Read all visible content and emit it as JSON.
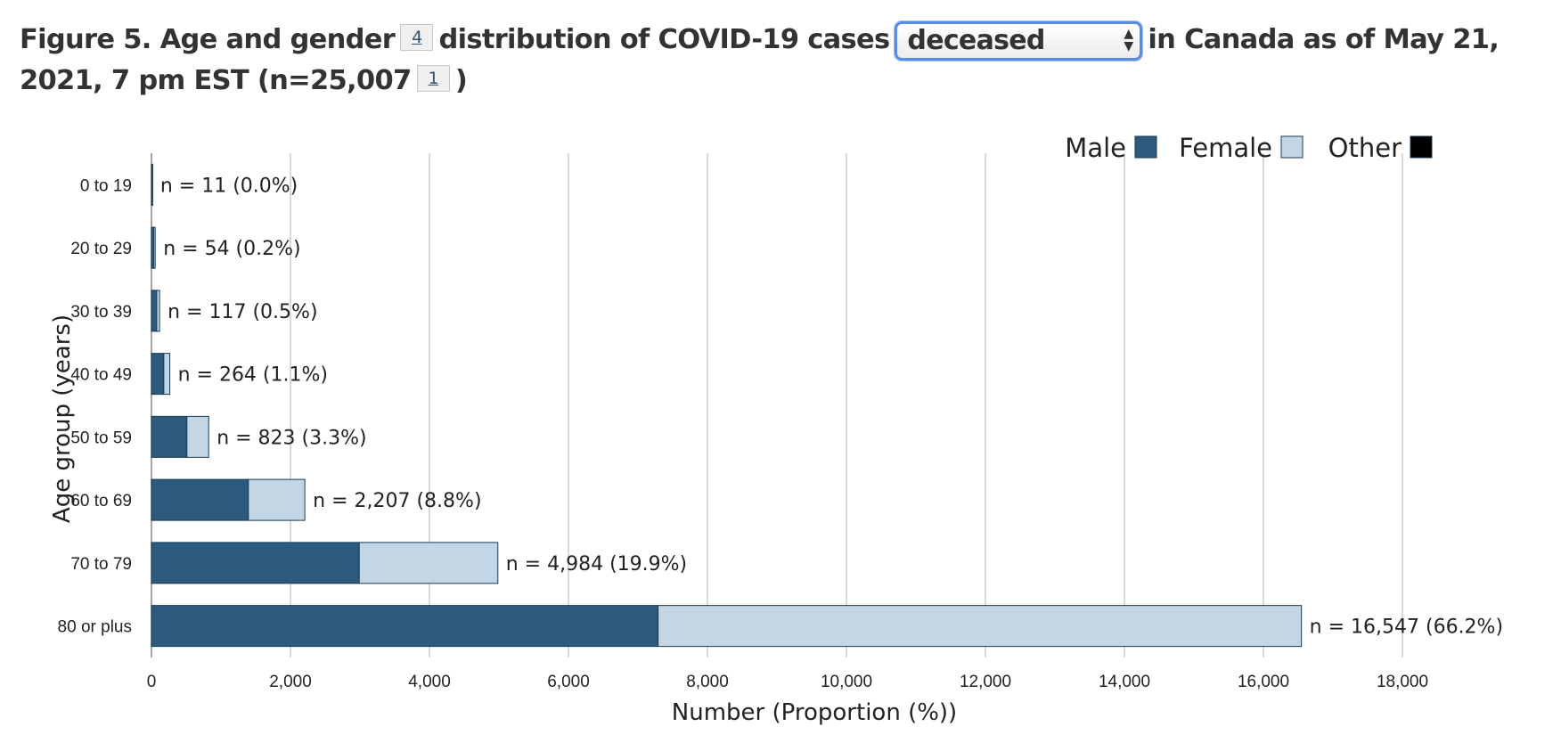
{
  "title": {
    "part1": "Figure 5. Age and gender",
    "footnote_a": "4",
    "part2": "distribution of COVID-19 cases",
    "select_value": "deceased",
    "part3": "in Canada as of May 21, 2021, 7 pm EST (n=25,007",
    "footnote_b": "1",
    "part4": ")"
  },
  "colors": {
    "male": "#2b5a7e",
    "female": "#c3d6e6",
    "other": "#000000",
    "grid": "#cccccc"
  },
  "chart_data": {
    "type": "bar",
    "orientation": "horizontal",
    "stacked": true,
    "categories": [
      "0 to 19",
      "20 to 29",
      "30 to 39",
      "40 to 49",
      "50 to 59",
      "60 to 69",
      "70 to 79",
      "80 or plus"
    ],
    "series": [
      {
        "name": "Male",
        "values": [
          5,
          33,
          76,
          178,
          510,
          1395,
          2990,
          7290
        ]
      },
      {
        "name": "Female",
        "values": [
          6,
          21,
          41,
          86,
          313,
          812,
          1994,
          9257
        ]
      },
      {
        "name": "Other",
        "values": [
          0,
          0,
          0,
          0,
          0,
          0,
          0,
          0
        ]
      }
    ],
    "totals": [
      11,
      54,
      117,
      264,
      823,
      2207,
      4984,
      16547
    ],
    "data_labels": [
      "n = 11 (0.0%)",
      "n = 54 (0.2%)",
      "n = 117 (0.5%)",
      "n = 264 (1.1%)",
      "n = 823 (3.3%)",
      "n = 2,207 (8.8%)",
      "n = 4,984 (19.9%)",
      "n = 16,547 (66.2%)"
    ],
    "xlim": [
      0,
      18000
    ],
    "xticks": [
      0,
      2000,
      4000,
      6000,
      8000,
      10000,
      12000,
      14000,
      16000,
      18000
    ],
    "xtick_labels": [
      "0",
      "2,000",
      "4,000",
      "6,000",
      "8,000",
      "10,000",
      "12,000",
      "14,000",
      "16,000",
      "18,000"
    ],
    "xlabel": "Number (Proportion (%))",
    "ylabel": "Age group (years)",
    "grid": true,
    "legend": "top-right"
  }
}
